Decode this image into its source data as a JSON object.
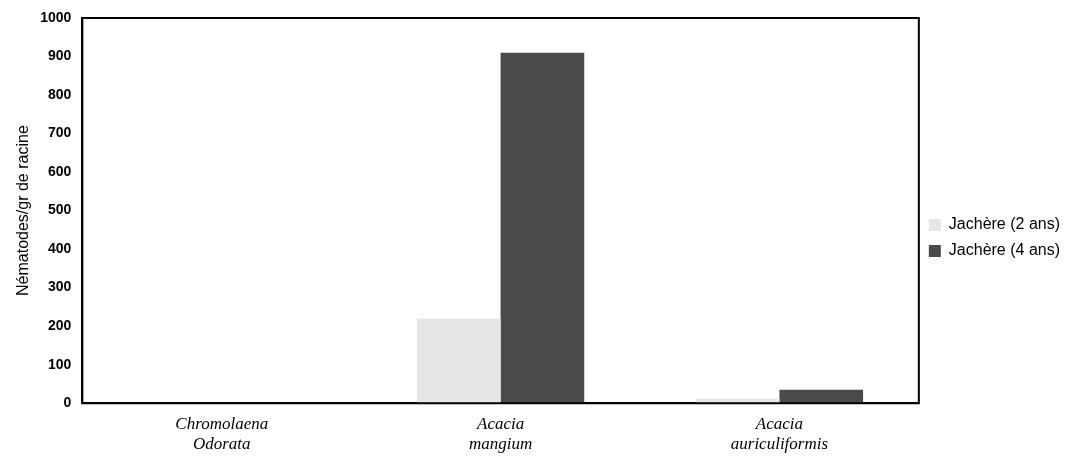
{
  "chart_data": {
    "type": "bar",
    "ylabel": "Nématodes/gr de racine",
    "categories": [
      "Chromolaena Odorata",
      "Acacia mangium",
      "Acacia auriculiformis"
    ],
    "series": [
      {
        "name": "Jachère (2 ans)",
        "color": "#e6e6e6",
        "values": [
          0,
          220,
          12
        ]
      },
      {
        "name": "Jachère (4 ans)",
        "color": "#4a4a4a",
        "values": [
          0,
          910,
          35
        ]
      }
    ],
    "ylim": [
      0,
      1000
    ],
    "yticks": [
      0,
      100,
      200,
      300,
      400,
      500,
      600,
      700,
      800,
      900,
      1000
    ],
    "grid": false,
    "legend": "right"
  }
}
